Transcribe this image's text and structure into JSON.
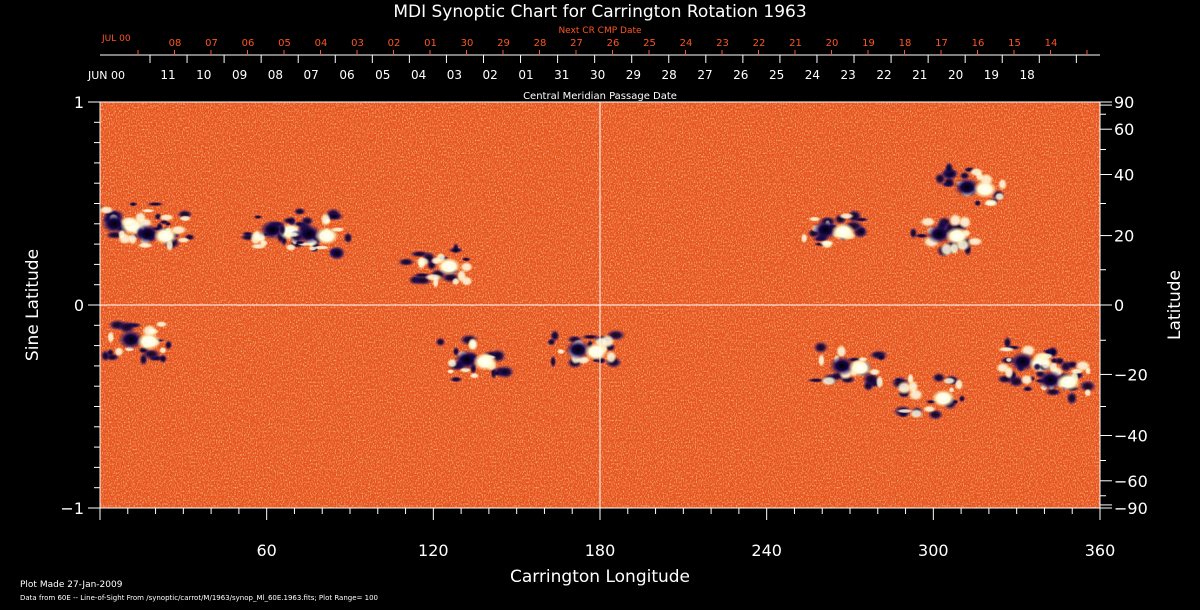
{
  "chart_data": {
    "type": "heatmap",
    "title": "MDI Synoptic Chart for Carrington Rotation 1963",
    "xlabel": "Carrington Longitude",
    "ylabel_left": "Sine Latitude",
    "ylabel_right": "Latitude",
    "xlim": [
      0,
      360
    ],
    "ylim": [
      -1,
      1
    ],
    "x_ticks": [
      "60",
      "120",
      "180",
      "240",
      "300",
      "360"
    ],
    "x_tick_values": [
      60,
      120,
      180,
      240,
      300,
      360
    ],
    "y_left_ticks": [
      "1",
      "0",
      "−1"
    ],
    "y_left_tick_values": [
      1,
      0,
      -1
    ],
    "y_right_ticks": [
      "90",
      "60",
      "40",
      "20",
      "0",
      "−20",
      "−40",
      "−60",
      "−90"
    ],
    "y_right_tick_degrees": [
      90,
      60,
      40,
      20,
      0,
      -20,
      -40,
      -60,
      -90
    ],
    "top_axis_title": "Central Meridian Passage Date",
    "top_axis_month_start": "JUN 00",
    "top_axis_labels": [
      "11",
      "10",
      "09",
      "08",
      "07",
      "06",
      "05",
      "04",
      "03",
      "02",
      "01",
      "31",
      "30",
      "29",
      "28",
      "27",
      "26",
      "25",
      "24",
      "23",
      "22",
      "21",
      "20",
      "19",
      "18"
    ],
    "top_axis_label_values": [
      11,
      10,
      9,
      8,
      7,
      6,
      5,
      4,
      3,
      2,
      1,
      31,
      30,
      29,
      28,
      27,
      26,
      25,
      24,
      23,
      22,
      21,
      20,
      19,
      18
    ],
    "next_axis_title": "Next CR CMP Date",
    "next_axis_month_start": "JUL 00",
    "next_axis_labels": [
      "08",
      "07",
      "06",
      "05",
      "04",
      "03",
      "02",
      "01",
      "30",
      "29",
      "28",
      "27",
      "26",
      "25",
      "24",
      "23",
      "22",
      "21",
      "20",
      "19",
      "18",
      "17",
      "16",
      "15",
      "14"
    ],
    "colors": {
      "background": "#000000",
      "axis": "#ffffff",
      "next_axis": "#ff5522",
      "field_base": "#e8531c",
      "positive_polarity": "#ffffff",
      "negative_polarity": "#1a0a5a"
    },
    "active_regions": [
      {
        "lon": 8,
        "sinlat": 0.4,
        "polarity": "mixed"
      },
      {
        "lon": 20,
        "sinlat": 0.35,
        "polarity": "mixed"
      },
      {
        "lon": 65,
        "sinlat": 0.37,
        "polarity": "mixed"
      },
      {
        "lon": 78,
        "sinlat": 0.35,
        "polarity": "mixed"
      },
      {
        "lon": 122,
        "sinlat": 0.2,
        "polarity": "positive"
      },
      {
        "lon": 175,
        "sinlat": -0.22,
        "polarity": "mixed"
      },
      {
        "lon": 135,
        "sinlat": -0.27,
        "polarity": "mixed"
      },
      {
        "lon": 14,
        "sinlat": -0.17,
        "polarity": "mixed"
      },
      {
        "lon": 264,
        "sinlat": 0.37,
        "polarity": "mixed"
      },
      {
        "lon": 305,
        "sinlat": 0.35,
        "polarity": "mixed"
      },
      {
        "lon": 315,
        "sinlat": 0.58,
        "polarity": "mixed"
      },
      {
        "lon": 270,
        "sinlat": -0.3,
        "polarity": "mixed"
      },
      {
        "lon": 300,
        "sinlat": -0.45,
        "polarity": "positive"
      },
      {
        "lon": 335,
        "sinlat": -0.28,
        "polarity": "mixed"
      },
      {
        "lon": 345,
        "sinlat": -0.37,
        "polarity": "mixed"
      }
    ]
  },
  "footer": {
    "plot_made": "Plot Made 27-Jan-2009",
    "data_source": "Data from 60E -- Line-of-Sight From /synoptic/carrot/M/1963/synop_Ml_60E.1963.fits; Plot Range= 100"
  }
}
